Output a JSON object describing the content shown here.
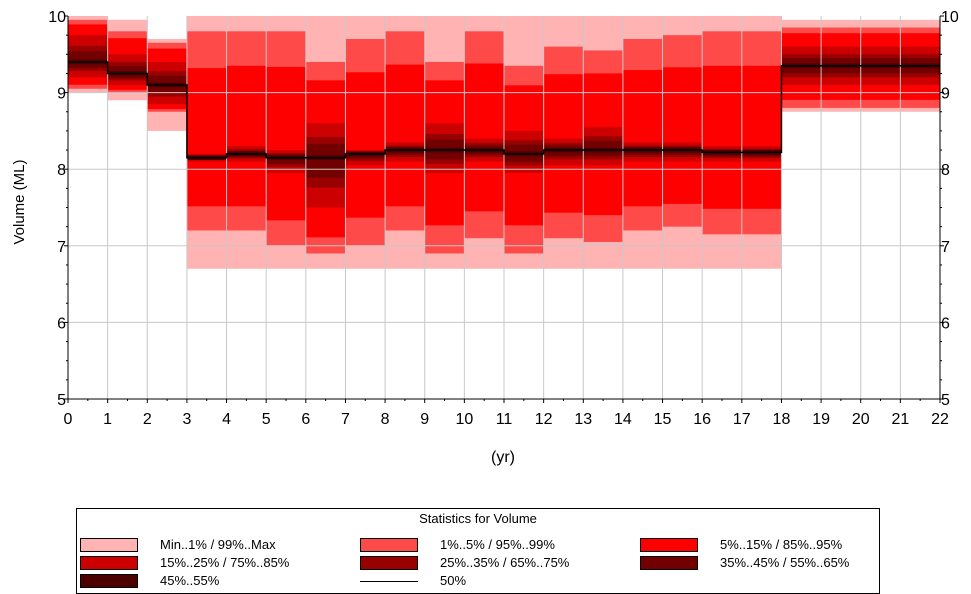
{
  "chart_data": {
    "type": "area",
    "xlabel": "(yr)",
    "ylabel": "Volume (ML)",
    "xlim": [
      0,
      22
    ],
    "ylim": [
      5,
      10
    ],
    "x_ticks": [
      "0",
      "1",
      "2",
      "3",
      "4",
      "5",
      "6",
      "7",
      "8",
      "9",
      "10",
      "11",
      "12",
      "13",
      "14",
      "15",
      "16",
      "17",
      "18",
      "19",
      "20",
      "21",
      "22"
    ],
    "y_ticks": [
      "5",
      "6",
      "7",
      "8",
      "9",
      "10"
    ],
    "grid": true,
    "right_axis": true,
    "legend_title": "Statistics for Volume",
    "legend_position": "bottom",
    "legend": [
      {
        "name": "Min..1% / 99%..Max",
        "color": "#ffb3b3",
        "kind": "swatch"
      },
      {
        "name": "1%..5% / 95%..99%",
        "color": "#ff4a4a",
        "kind": "swatch"
      },
      {
        "name": "5%..15% / 85%..95%",
        "color": "#ff0000",
        "kind": "swatch"
      },
      {
        "name": "15%..25% / 75%..85%",
        "color": "#cc0000",
        "kind": "swatch"
      },
      {
        "name": "25%..35% / 65%..75%",
        "color": "#990000",
        "kind": "swatch"
      },
      {
        "name": "35%..45% / 55%..65%",
        "color": "#730000",
        "kind": "swatch"
      },
      {
        "name": "45%..55%",
        "color": "#4d0000",
        "kind": "swatch"
      },
      {
        "name": "50%",
        "color": "#000000",
        "kind": "line"
      }
    ],
    "segments": [
      {
        "x": [
          0,
          1
        ],
        "min": 9.0,
        "p5": 9.05,
        "p25": 9.2,
        "median": 9.4,
        "p75": 9.75,
        "p95": 9.95,
        "max": 10.0
      },
      {
        "x": [
          1,
          2
        ],
        "min": 8.9,
        "p5": 9.0,
        "p25": 9.1,
        "median": 9.25,
        "p75": 9.5,
        "p95": 9.8,
        "max": 9.95
      },
      {
        "x": [
          2,
          3
        ],
        "min": 8.5,
        "p5": 8.75,
        "p25": 8.85,
        "median": 9.1,
        "p75": 9.4,
        "p95": 9.65,
        "max": 9.7
      },
      {
        "x": [
          3,
          4
        ],
        "min": 6.7,
        "p5": 7.2,
        "p25": 8.1,
        "median": 8.15,
        "p75": 8.2,
        "p95": 9.8,
        "max": 10.0
      },
      {
        "x": [
          4,
          5
        ],
        "min": 6.7,
        "p5": 7.2,
        "p25": 8.1,
        "median": 8.2,
        "p75": 8.3,
        "p95": 9.8,
        "max": 10.0
      },
      {
        "x": [
          5,
          6
        ],
        "min": 6.7,
        "p5": 7.0,
        "p25": 7.95,
        "median": 8.15,
        "p75": 8.25,
        "p95": 9.8,
        "max": 10.0
      },
      {
        "x": [
          6,
          7
        ],
        "min": 6.7,
        "p5": 6.9,
        "p25": 7.5,
        "median": 8.15,
        "p75": 8.6,
        "p95": 9.4,
        "max": 10.0
      },
      {
        "x": [
          7,
          8
        ],
        "min": 6.7,
        "p5": 7.0,
        "p25": 8.05,
        "median": 8.2,
        "p75": 8.25,
        "p95": 9.7,
        "max": 10.0
      },
      {
        "x": [
          8,
          9
        ],
        "min": 6.7,
        "p5": 7.2,
        "p25": 8.1,
        "median": 8.25,
        "p75": 8.35,
        "p95": 9.8,
        "max": 10.0
      },
      {
        "x": [
          9,
          10
        ],
        "min": 6.7,
        "p5": 6.9,
        "p25": 7.95,
        "median": 8.25,
        "p75": 8.6,
        "p95": 9.4,
        "max": 10.0
      },
      {
        "x": [
          10,
          11
        ],
        "min": 6.7,
        "p5": 7.1,
        "p25": 8.1,
        "median": 8.25,
        "p75": 8.4,
        "p95": 9.8,
        "max": 10.0
      },
      {
        "x": [
          11,
          12
        ],
        "min": 6.7,
        "p5": 6.9,
        "p25": 7.95,
        "median": 8.2,
        "p75": 8.5,
        "p95": 9.35,
        "max": 10.0
      },
      {
        "x": [
          12,
          13
        ],
        "min": 6.7,
        "p5": 7.1,
        "p25": 8.05,
        "median": 8.25,
        "p75": 8.4,
        "p95": 9.6,
        "max": 10.0
      },
      {
        "x": [
          13,
          14
        ],
        "min": 6.7,
        "p5": 7.05,
        "p25": 8.05,
        "median": 8.25,
        "p75": 8.55,
        "p95": 9.55,
        "max": 10.0
      },
      {
        "x": [
          14,
          15
        ],
        "min": 6.7,
        "p5": 7.2,
        "p25": 8.1,
        "median": 8.25,
        "p75": 8.35,
        "p95": 9.7,
        "max": 10.0
      },
      {
        "x": [
          15,
          16
        ],
        "min": 6.7,
        "p5": 7.25,
        "p25": 8.1,
        "median": 8.25,
        "p75": 8.35,
        "p95": 9.75,
        "max": 10.0
      },
      {
        "x": [
          16,
          17
        ],
        "min": 6.7,
        "p5": 7.15,
        "p25": 8.1,
        "median": 8.22,
        "p75": 8.3,
        "p95": 9.8,
        "max": 10.0
      },
      {
        "x": [
          17,
          18
        ],
        "min": 6.7,
        "p5": 7.15,
        "p25": 8.1,
        "median": 8.22,
        "p75": 8.3,
        "p95": 9.8,
        "max": 10.0
      },
      {
        "x": [
          18,
          22
        ],
        "min": 8.75,
        "p5": 8.8,
        "p25": 9.1,
        "median": 9.35,
        "p75": 9.6,
        "p95": 9.85,
        "max": 9.95
      }
    ]
  }
}
